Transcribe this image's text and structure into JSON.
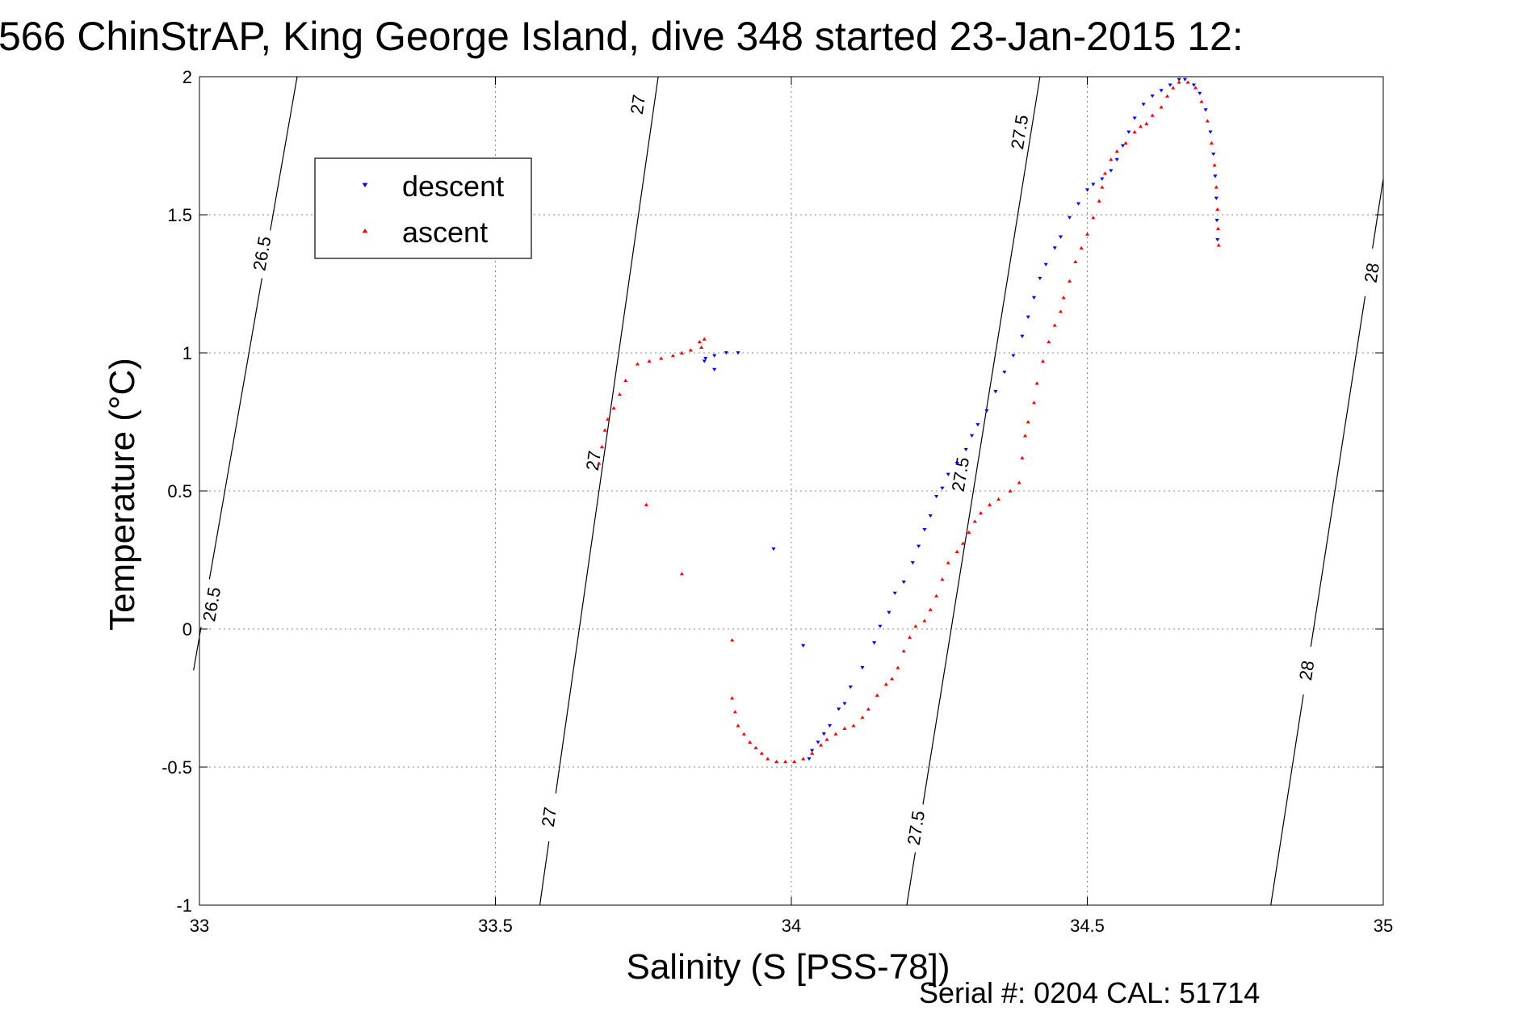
{
  "chart_data": {
    "type": "scatter",
    "title": "566 ChinStrAP, King George Island, dive 348 started 23-Jan-2015 12:",
    "xlabel": "Salinity (S [PSS-78])",
    "ylabel": "Temperature (°C)",
    "xlim": [
      33,
      35
    ],
    "ylim": [
      -1,
      2
    ],
    "xticks": [
      {
        "value": 33,
        "label": "33"
      },
      {
        "value": 33.5,
        "label": "33.5"
      },
      {
        "value": 34,
        "label": "34"
      },
      {
        "value": 34.5,
        "label": "34.5"
      },
      {
        "value": 35,
        "label": "35"
      }
    ],
    "yticks": [
      {
        "value": -1,
        "label": "-1"
      },
      {
        "value": -0.5,
        "label": "-0.5"
      },
      {
        "value": 0,
        "label": "0"
      },
      {
        "value": 0.5,
        "label": "0.5"
      },
      {
        "value": 1,
        "label": "1"
      },
      {
        "value": 1.5,
        "label": "1.5"
      },
      {
        "value": 2,
        "label": "2"
      }
    ],
    "grid": true,
    "legend_position": "top-left",
    "footer": "Serial #: 0204  CAL: 51714",
    "density_contours": [
      {
        "label": "26.5",
        "points": [
          [
            32.99,
            -0.15
          ],
          [
            33.165,
            2.0
          ]
        ],
        "labels_at": [
          [
            33.02,
            0.09
          ],
          [
            33.105,
            1.36
          ]
        ]
      },
      {
        "label": "27",
        "points": [
          [
            33.575,
            -1.0
          ],
          [
            33.775,
            2.0
          ]
        ],
        "labels_at": [
          [
            33.59,
            -0.68
          ],
          [
            33.665,
            0.61
          ],
          [
            33.74,
            1.9
          ]
        ]
      },
      {
        "label": "27.5",
        "points": [
          [
            34.195,
            -1.0
          ],
          [
            34.42,
            2.0
          ]
        ],
        "labels_at": [
          [
            34.21,
            -0.72
          ],
          [
            34.285,
            0.56
          ],
          [
            34.385,
            1.8
          ]
        ]
      },
      {
        "label": "28",
        "points": [
          [
            34.81,
            -1.0
          ],
          [
            35.0,
            1.63
          ]
        ],
        "labels_at": [
          [
            34.87,
            -0.15
          ],
          [
            34.98,
            1.29
          ]
        ]
      }
    ],
    "series": [
      {
        "name": "descent",
        "color": "#0000ff",
        "marker": "triangle-down",
        "points": [
          [
            33.91,
            1.0
          ],
          [
            33.89,
            1.0
          ],
          [
            33.87,
            0.99
          ],
          [
            33.855,
            0.98
          ],
          [
            33.853,
            0.97
          ],
          [
            33.87,
            0.94
          ],
          [
            33.97,
            0.29
          ],
          [
            34.02,
            -0.06
          ],
          [
            34.03,
            -0.47
          ],
          [
            34.035,
            -0.44
          ],
          [
            34.045,
            -0.41
          ],
          [
            34.055,
            -0.38
          ],
          [
            34.065,
            -0.35
          ],
          [
            34.08,
            -0.29
          ],
          [
            34.09,
            -0.27
          ],
          [
            34.1,
            -0.21
          ],
          [
            34.12,
            -0.14
          ],
          [
            34.14,
            -0.05
          ],
          [
            34.15,
            0.01
          ],
          [
            34.165,
            0.06
          ],
          [
            34.175,
            0.13
          ],
          [
            34.19,
            0.17
          ],
          [
            34.205,
            0.24
          ],
          [
            34.215,
            0.3
          ],
          [
            34.225,
            0.36
          ],
          [
            34.235,
            0.41
          ],
          [
            34.245,
            0.48
          ],
          [
            34.255,
            0.51
          ],
          [
            34.265,
            0.56
          ],
          [
            34.28,
            0.6
          ],
          [
            34.295,
            0.65
          ],
          [
            34.305,
            0.7
          ],
          [
            34.315,
            0.74
          ],
          [
            34.33,
            0.79
          ],
          [
            34.345,
            0.86
          ],
          [
            34.36,
            0.93
          ],
          [
            34.375,
            0.99
          ],
          [
            34.39,
            1.06
          ],
          [
            34.4,
            1.13
          ],
          [
            34.41,
            1.2
          ],
          [
            34.42,
            1.27
          ],
          [
            34.43,
            1.32
          ],
          [
            34.445,
            1.38
          ],
          [
            34.455,
            1.42
          ],
          [
            34.47,
            1.49
          ],
          [
            34.485,
            1.54
          ],
          [
            34.5,
            1.59
          ],
          [
            34.51,
            1.61
          ],
          [
            34.525,
            1.63
          ],
          [
            34.54,
            1.66
          ],
          [
            34.55,
            1.7
          ],
          [
            34.56,
            1.75
          ],
          [
            34.57,
            1.8
          ],
          [
            34.58,
            1.85
          ],
          [
            34.595,
            1.9
          ],
          [
            34.61,
            1.93
          ],
          [
            34.625,
            1.95
          ],
          [
            34.64,
            1.97
          ],
          [
            34.655,
            1.99
          ],
          [
            34.665,
            1.99
          ],
          [
            34.68,
            1.97
          ],
          [
            34.69,
            1.94
          ],
          [
            34.7,
            1.88
          ],
          [
            34.708,
            1.8
          ],
          [
            34.713,
            1.72
          ],
          [
            34.716,
            1.64
          ],
          [
            34.718,
            1.56
          ],
          [
            34.719,
            1.48
          ],
          [
            34.72,
            1.41
          ]
        ]
      },
      {
        "name": "ascent",
        "color": "#ff0000",
        "marker": "triangle-up",
        "points": [
          [
            33.853,
            1.05
          ],
          [
            33.845,
            1.04
          ],
          [
            33.848,
            1.02
          ],
          [
            33.83,
            1.01
          ],
          [
            33.815,
            1.0
          ],
          [
            33.8,
            0.99
          ],
          [
            33.78,
            0.98
          ],
          [
            33.76,
            0.97
          ],
          [
            33.74,
            0.96
          ],
          [
            33.72,
            0.9
          ],
          [
            33.71,
            0.85
          ],
          [
            33.7,
            0.8
          ],
          [
            33.69,
            0.76
          ],
          [
            33.685,
            0.72
          ],
          [
            33.68,
            0.66
          ],
          [
            33.675,
            0.6
          ],
          [
            33.755,
            0.45
          ],
          [
            33.815,
            0.2
          ],
          [
            33.9,
            -0.04
          ],
          [
            33.9,
            -0.25
          ],
          [
            33.905,
            -0.3
          ],
          [
            33.91,
            -0.35
          ],
          [
            33.92,
            -0.38
          ],
          [
            33.93,
            -0.41
          ],
          [
            33.94,
            -0.43
          ],
          [
            33.95,
            -0.45
          ],
          [
            33.96,
            -0.47
          ],
          [
            33.975,
            -0.48
          ],
          [
            33.99,
            -0.48
          ],
          [
            34.005,
            -0.48
          ],
          [
            34.02,
            -0.47
          ],
          [
            34.035,
            -0.45
          ],
          [
            34.05,
            -0.42
          ],
          [
            34.06,
            -0.4
          ],
          [
            34.075,
            -0.38
          ],
          [
            34.09,
            -0.36
          ],
          [
            34.105,
            -0.35
          ],
          [
            34.12,
            -0.32
          ],
          [
            34.13,
            -0.29
          ],
          [
            34.145,
            -0.24
          ],
          [
            34.16,
            -0.2
          ],
          [
            34.17,
            -0.18
          ],
          [
            34.18,
            -0.14
          ],
          [
            34.19,
            -0.08
          ],
          [
            34.2,
            -0.03
          ],
          [
            34.21,
            0.01
          ],
          [
            34.225,
            0.03
          ],
          [
            34.235,
            0.07
          ],
          [
            34.245,
            0.12
          ],
          [
            34.255,
            0.18
          ],
          [
            34.265,
            0.24
          ],
          [
            34.28,
            0.28
          ],
          [
            34.29,
            0.31
          ],
          [
            34.3,
            0.35
          ],
          [
            34.31,
            0.39
          ],
          [
            34.32,
            0.42
          ],
          [
            34.335,
            0.45
          ],
          [
            34.35,
            0.47
          ],
          [
            34.37,
            0.5
          ],
          [
            34.385,
            0.53
          ],
          [
            34.39,
            0.62
          ],
          [
            34.395,
            0.7
          ],
          [
            34.4,
            0.75
          ],
          [
            34.41,
            0.82
          ],
          [
            34.415,
            0.89
          ],
          [
            34.425,
            0.97
          ],
          [
            34.435,
            1.04
          ],
          [
            34.445,
            1.1
          ],
          [
            34.455,
            1.15
          ],
          [
            34.46,
            1.2
          ],
          [
            34.47,
            1.26
          ],
          [
            34.48,
            1.33
          ],
          [
            34.49,
            1.38
          ],
          [
            34.5,
            1.43
          ],
          [
            34.51,
            1.49
          ],
          [
            34.52,
            1.55
          ],
          [
            34.525,
            1.6
          ],
          [
            34.53,
            1.65
          ],
          [
            34.54,
            1.7
          ],
          [
            34.55,
            1.73
          ],
          [
            34.565,
            1.76
          ],
          [
            34.58,
            1.8
          ],
          [
            34.59,
            1.82
          ],
          [
            34.6,
            1.83
          ],
          [
            34.61,
            1.86
          ],
          [
            34.625,
            1.89
          ],
          [
            34.635,
            1.93
          ],
          [
            34.645,
            1.96
          ],
          [
            34.655,
            1.98
          ],
          [
            34.67,
            1.98
          ],
          [
            34.683,
            1.96
          ],
          [
            34.693,
            1.91
          ],
          [
            34.703,
            1.84
          ],
          [
            34.71,
            1.76
          ],
          [
            34.715,
            1.68
          ],
          [
            34.718,
            1.6
          ],
          [
            34.72,
            1.52
          ],
          [
            34.721,
            1.45
          ],
          [
            34.722,
            1.39
          ]
        ]
      }
    ]
  }
}
